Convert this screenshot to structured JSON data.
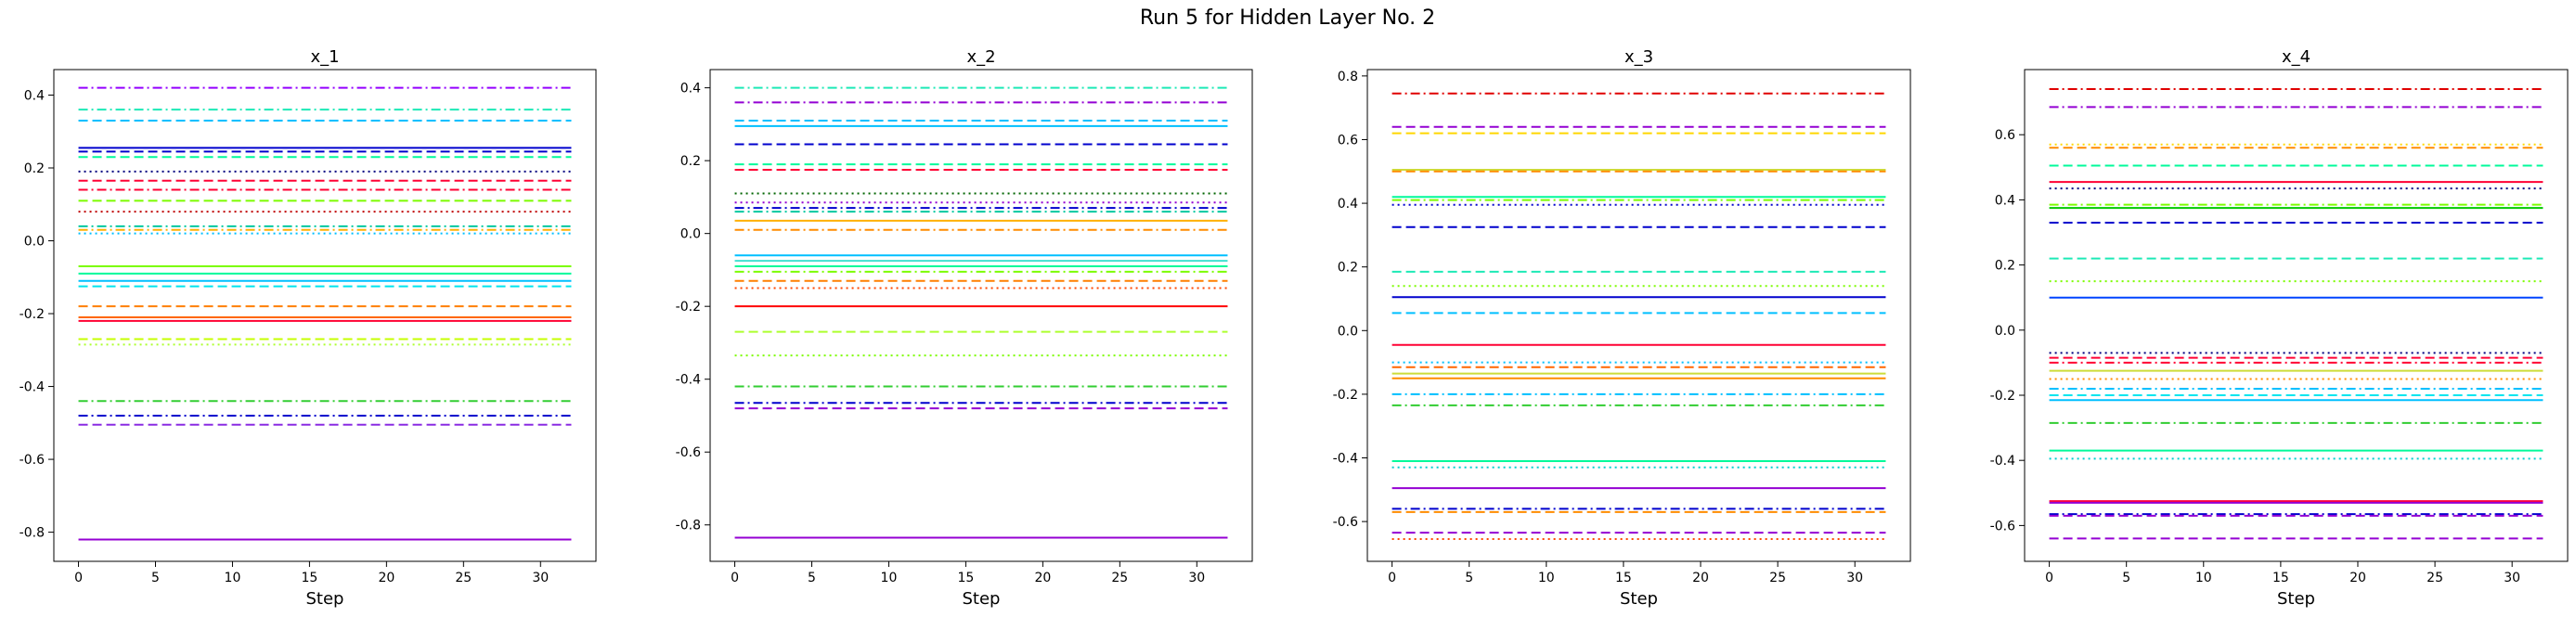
{
  "figure": {
    "title": "Run 5 for Hidden Layer No. 2"
  },
  "chart_data": [
    {
      "type": "line",
      "title": "x_1",
      "xlabel": "Step",
      "ylabel": "",
      "x_range": [
        0,
        32
      ],
      "xlim": [
        -1.6,
        33.6
      ],
      "ylim": [
        -0.88,
        0.47
      ],
      "xticks": [
        0,
        5,
        10,
        15,
        20,
        25,
        30
      ],
      "yticks": [
        -0.8,
        -0.6,
        -0.4,
        -0.2,
        0.0,
        0.2,
        0.4
      ],
      "ytick_labels": [
        "-0.8",
        "-0.6",
        "-0.4",
        "-0.2",
        "0.0",
        "0.2",
        "0.4"
      ],
      "grid": false,
      "series": [
        {
          "value": 0.42,
          "color": "#9400ff",
          "style": "dashdot"
        },
        {
          "value": 0.36,
          "color": "#1de9b6",
          "style": "dashdot"
        },
        {
          "value": 0.33,
          "color": "#00bfff",
          "style": "dashed"
        },
        {
          "value": 0.255,
          "color": "#0000cd",
          "style": "solid"
        },
        {
          "value": 0.245,
          "color": "#0000cd",
          "style": "dashed"
        },
        {
          "value": 0.23,
          "color": "#00fa9a",
          "style": "dashed"
        },
        {
          "value": 0.19,
          "color": "#000080",
          "style": "dotted"
        },
        {
          "value": 0.165,
          "color": "#ff0033",
          "style": "dashed"
        },
        {
          "value": 0.14,
          "color": "#ff0033",
          "style": "dashdot"
        },
        {
          "value": 0.11,
          "color": "#7cfc00",
          "style": "dashed"
        },
        {
          "value": 0.08,
          "color": "#c00000",
          "style": "dotted"
        },
        {
          "value": 0.04,
          "color": "#00c8a0",
          "style": "dashdot"
        },
        {
          "value": 0.03,
          "color": "#ffb000",
          "style": "dashdot"
        },
        {
          "value": 0.02,
          "color": "#00bfff",
          "style": "dotted"
        },
        {
          "value": -0.07,
          "color": "#7cfc00",
          "style": "solid"
        },
        {
          "value": -0.09,
          "color": "#00fa9a",
          "style": "solid"
        },
        {
          "value": -0.11,
          "color": "#00bfff",
          "style": "solid"
        },
        {
          "value": -0.125,
          "color": "#00e5ee",
          "style": "dashed"
        },
        {
          "value": -0.18,
          "color": "#ff7f00",
          "style": "dashed"
        },
        {
          "value": -0.21,
          "color": "#ff6600",
          "style": "solid"
        },
        {
          "value": -0.22,
          "color": "#ff0033",
          "style": "solid"
        },
        {
          "value": -0.27,
          "color": "#c6ff00",
          "style": "dashed"
        },
        {
          "value": -0.285,
          "color": "#adff2f",
          "style": "dotted"
        },
        {
          "value": -0.44,
          "color": "#32cd32",
          "style": "dashdot"
        },
        {
          "value": -0.48,
          "color": "#0000cd",
          "style": "dashdot"
        },
        {
          "value": -0.505,
          "color": "#8a2be2",
          "style": "dashed"
        },
        {
          "value": -0.82,
          "color": "#9400d3",
          "style": "solid"
        }
      ]
    },
    {
      "type": "line",
      "title": "x_2",
      "xlabel": "Step",
      "ylabel": "",
      "x_range": [
        0,
        32
      ],
      "xlim": [
        -1.6,
        33.6
      ],
      "ylim": [
        -0.9,
        0.45
      ],
      "xticks": [
        0,
        5,
        10,
        15,
        20,
        25,
        30
      ],
      "yticks": [
        -0.8,
        -0.6,
        -0.4,
        -0.2,
        0.0,
        0.2,
        0.4
      ],
      "ytick_labels": [
        "-0.8",
        "-0.6",
        "-0.4",
        "-0.2",
        "0.0",
        "0.2",
        "0.4"
      ],
      "grid": false,
      "series": [
        {
          "value": 0.4,
          "color": "#1de9b6",
          "style": "dashdot"
        },
        {
          "value": 0.36,
          "color": "#9400d3",
          "style": "dashdot"
        },
        {
          "value": 0.31,
          "color": "#00bfff",
          "style": "dashed"
        },
        {
          "value": 0.295,
          "color": "#00bfff",
          "style": "solid"
        },
        {
          "value": 0.245,
          "color": "#0000cd",
          "style": "dashed"
        },
        {
          "value": 0.19,
          "color": "#00fa9a",
          "style": "dashed"
        },
        {
          "value": 0.175,
          "color": "#ff0033",
          "style": "dashed"
        },
        {
          "value": 0.11,
          "color": "#006400",
          "style": "dotted"
        },
        {
          "value": 0.085,
          "color": "#9400d3",
          "style": "dotted"
        },
        {
          "value": 0.07,
          "color": "#0000cd",
          "style": "dashdot"
        },
        {
          "value": 0.06,
          "color": "#00c8a0",
          "style": "dashdot"
        },
        {
          "value": 0.035,
          "color": "#ffb000",
          "style": "solid"
        },
        {
          "value": 0.01,
          "color": "#ff8c00",
          "style": "dashdot"
        },
        {
          "value": -0.06,
          "color": "#00bfff",
          "style": "solid"
        },
        {
          "value": -0.075,
          "color": "#40e0d0",
          "style": "solid"
        },
        {
          "value": -0.09,
          "color": "#00fa9a",
          "style": "solid"
        },
        {
          "value": -0.105,
          "color": "#7cfc00",
          "style": "dashdot"
        },
        {
          "value": -0.13,
          "color": "#ff7f00",
          "style": "dashed"
        },
        {
          "value": -0.15,
          "color": "#ff4500",
          "style": "dotted"
        },
        {
          "value": -0.2,
          "color": "#ff0000",
          "style": "solid"
        },
        {
          "value": -0.27,
          "color": "#adff2f",
          "style": "dashed"
        },
        {
          "value": -0.335,
          "color": "#7cfc00",
          "style": "dotted"
        },
        {
          "value": -0.42,
          "color": "#32cd32",
          "style": "dashdot"
        },
        {
          "value": -0.465,
          "color": "#0000cd",
          "style": "dashdot"
        },
        {
          "value": -0.48,
          "color": "#9400d3",
          "style": "dashed"
        },
        {
          "value": -0.835,
          "color": "#9400d3",
          "style": "solid"
        }
      ]
    },
    {
      "type": "line",
      "title": "x_3",
      "xlabel": "Step",
      "ylabel": "",
      "x_range": [
        0,
        32
      ],
      "xlim": [
        -1.6,
        33.6
      ],
      "ylim": [
        -0.725,
        0.82
      ],
      "xticks": [
        0,
        5,
        10,
        15,
        20,
        25,
        30
      ],
      "yticks": [
        -0.6,
        -0.4,
        -0.2,
        0.0,
        0.2,
        0.4,
        0.6,
        0.8
      ],
      "ytick_labels": [
        "-0.6",
        "-0.4",
        "-0.2",
        "0.0",
        "0.2",
        "0.4",
        "0.6",
        "0.8"
      ],
      "grid": false,
      "series": [
        {
          "value": 0.745,
          "color": "#e00000",
          "style": "dashdot"
        },
        {
          "value": 0.64,
          "color": "#9400d3",
          "style": "dashed"
        },
        {
          "value": 0.62,
          "color": "#ffd700",
          "style": "dashed"
        },
        {
          "value": 0.505,
          "color": "#cddc39",
          "style": "solid"
        },
        {
          "value": 0.5,
          "color": "#ff8c00",
          "style": "dashed"
        },
        {
          "value": 0.42,
          "color": "#00fa9a",
          "style": "solid"
        },
        {
          "value": 0.41,
          "color": "#7cfc00",
          "style": "dashdot"
        },
        {
          "value": 0.395,
          "color": "#0000cd",
          "style": "dotted"
        },
        {
          "value": 0.325,
          "color": "#0000cd",
          "style": "dashed"
        },
        {
          "value": 0.185,
          "color": "#1de9b6",
          "style": "dashed"
        },
        {
          "value": 0.14,
          "color": "#7cfc00",
          "style": "dotted"
        },
        {
          "value": 0.105,
          "color": "#0000cd",
          "style": "solid"
        },
        {
          "value": 0.055,
          "color": "#00bfff",
          "style": "dashed"
        },
        {
          "value": -0.045,
          "color": "#ff0033",
          "style": "solid"
        },
        {
          "value": -0.1,
          "color": "#00bfff",
          "style": "dotted"
        },
        {
          "value": -0.115,
          "color": "#ff6600",
          "style": "dashed"
        },
        {
          "value": -0.135,
          "color": "#cddc39",
          "style": "solid"
        },
        {
          "value": -0.15,
          "color": "#ff8c00",
          "style": "solid"
        },
        {
          "value": -0.2,
          "color": "#00bfff",
          "style": "dashdot"
        },
        {
          "value": -0.235,
          "color": "#32cd32",
          "style": "dashdot"
        },
        {
          "value": -0.41,
          "color": "#00fa9a",
          "style": "solid"
        },
        {
          "value": -0.43,
          "color": "#00ced1",
          "style": "dotted"
        },
        {
          "value": -0.495,
          "color": "#9400d3",
          "style": "solid"
        },
        {
          "value": -0.56,
          "color": "#0000cd",
          "style": "dashdot"
        },
        {
          "value": -0.57,
          "color": "#ff8c00",
          "style": "dashed"
        },
        {
          "value": -0.635,
          "color": "#9400d3",
          "style": "dashed"
        },
        {
          "value": -0.655,
          "color": "#ff4500",
          "style": "dotted"
        }
      ]
    },
    {
      "type": "line",
      "title": "x_4",
      "xlabel": "Step",
      "ylabel": "",
      "x_range": [
        0,
        32
      ],
      "xlim": [
        -1.6,
        33.6
      ],
      "ylim": [
        -0.71,
        0.8
      ],
      "xticks": [
        0,
        5,
        10,
        15,
        20,
        25,
        30
      ],
      "yticks": [
        -0.6,
        -0.4,
        -0.2,
        0.0,
        0.2,
        0.4,
        0.6
      ],
      "ytick_labels": [
        "-0.6",
        "-0.4",
        "-0.2",
        "0.0",
        "0.2",
        "0.4",
        "0.6"
      ],
      "grid": false,
      "series": [
        {
          "value": 0.74,
          "color": "#e00000",
          "style": "dashdot"
        },
        {
          "value": 0.685,
          "color": "#9400d3",
          "style": "dashdot"
        },
        {
          "value": 0.57,
          "color": "#ffd700",
          "style": "dotted"
        },
        {
          "value": 0.56,
          "color": "#ff8c00",
          "style": "dashed"
        },
        {
          "value": 0.505,
          "color": "#00fa9a",
          "style": "dashed"
        },
        {
          "value": 0.455,
          "color": "#ff0033",
          "style": "solid"
        },
        {
          "value": 0.435,
          "color": "#000080",
          "style": "dotted"
        },
        {
          "value": 0.385,
          "color": "#7cfc00",
          "style": "dashdot"
        },
        {
          "value": 0.375,
          "color": "#00c800",
          "style": "solid"
        },
        {
          "value": 0.33,
          "color": "#0000cd",
          "style": "dashed"
        },
        {
          "value": 0.22,
          "color": "#1de9b6",
          "style": "dashed"
        },
        {
          "value": 0.15,
          "color": "#7cfc00",
          "style": "dotted"
        },
        {
          "value": 0.1,
          "color": "#0044ff",
          "style": "solid"
        },
        {
          "value": -0.07,
          "color": "#000080",
          "style": "dotted"
        },
        {
          "value": -0.085,
          "color": "#ff0033",
          "style": "dashed"
        },
        {
          "value": -0.1,
          "color": "#ff0033",
          "style": "dashdot"
        },
        {
          "value": -0.125,
          "color": "#cddc39",
          "style": "solid"
        },
        {
          "value": -0.15,
          "color": "#ff8c00",
          "style": "dotted"
        },
        {
          "value": -0.18,
          "color": "#00bfff",
          "style": "dashdot"
        },
        {
          "value": -0.2,
          "color": "#00e5ee",
          "style": "dashed"
        },
        {
          "value": -0.215,
          "color": "#00bfff",
          "style": "solid"
        },
        {
          "value": -0.285,
          "color": "#32cd32",
          "style": "dashdot"
        },
        {
          "value": -0.37,
          "color": "#00fa9a",
          "style": "solid"
        },
        {
          "value": -0.395,
          "color": "#00ced1",
          "style": "dotted"
        },
        {
          "value": -0.525,
          "color": "#ff0033",
          "style": "solid"
        },
        {
          "value": -0.53,
          "color": "#9400d3",
          "style": "solid"
        },
        {
          "value": -0.565,
          "color": "#0000cd",
          "style": "dashdot"
        },
        {
          "value": -0.57,
          "color": "#9400d3",
          "style": "dashed"
        },
        {
          "value": -0.64,
          "color": "#9400d3",
          "style": "dashed"
        }
      ]
    }
  ]
}
